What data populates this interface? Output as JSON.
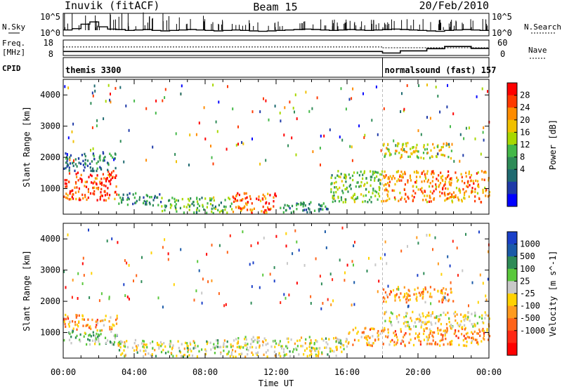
{
  "header": {
    "station": "Inuvik (fitACF)",
    "beam": "Beam 15",
    "date": "20/Feb/2010"
  },
  "left_labels": {
    "nsky": "N.Sky",
    "freq": "Freq.",
    "freq_unit": "[MHz]",
    "cpid": "CPID"
  },
  "right_labels": {
    "nsearch": "N.Search",
    "nave": "Nave"
  },
  "ticks": {
    "noise_top": "10^5",
    "noise_bottom": "10^0",
    "freq_top": "18",
    "freq_bottom": "8",
    "nave_top": "60",
    "nave_bottom": "0"
  },
  "cpid_segments": [
    {
      "label": "themis 3300",
      "start_hour": 0
    },
    {
      "label": "normalsound (fast) 157",
      "start_hour": 18
    }
  ],
  "colorbars": {
    "power": {
      "label": "Power [dB]",
      "ticks": [
        "28",
        "24",
        "20",
        "16",
        "12",
        "8",
        "4"
      ],
      "colors": [
        "#ff0000",
        "#ff3a00",
        "#ff8c00",
        "#f0c000",
        "#a8d800",
        "#44b848",
        "#2e8b57",
        "#1f6a70",
        "#1e3aa8",
        "#0000ff"
      ]
    },
    "velocity": {
      "label": "Velocity [m s^-1]",
      "ticks": [
        "1000",
        "500",
        "100",
        "25",
        "-25",
        "-100",
        "-500",
        "-1000"
      ],
      "colors": [
        "#1a3fc8",
        "#1a5aa8",
        "#2e8b57",
        "#5ac83c",
        "#c8c8c8",
        "#ffd200",
        "#ff9b1e",
        "#ff6419",
        "#ff2814",
        "#ff0000"
      ]
    }
  },
  "chart_data": {
    "type": "heatmap",
    "x_axis_label": "Time UT",
    "x_ticks": [
      "00:00",
      "04:00",
      "08:00",
      "12:00",
      "16:00",
      "20:00",
      "00:00"
    ],
    "xlim_hours": [
      0,
      24
    ],
    "y_axis_label": "Slant Range [km]",
    "y_ticks": [
      1000,
      2000,
      3000,
      4000
    ],
    "ylim_km": [
      180,
      4500
    ],
    "panels": [
      {
        "name": "Power [dB]",
        "clim": [
          0,
          32
        ],
        "regions": [
          {
            "t0": 0.0,
            "t1": 3.0,
            "r0": 650,
            "r1": 1600,
            "value": 27
          },
          {
            "t0": 0.0,
            "t1": 3.0,
            "r0": 1600,
            "r1": 2200,
            "value": 9
          },
          {
            "t0": 3.0,
            "t1": 5.5,
            "r0": 500,
            "r1": 900,
            "value": 10
          },
          {
            "t0": 5.5,
            "t1": 9.5,
            "r0": 250,
            "r1": 750,
            "value": 14
          },
          {
            "t0": 9.5,
            "t1": 12.0,
            "r0": 250,
            "r1": 900,
            "value": 26
          },
          {
            "t0": 12.0,
            "t1": 15.0,
            "r0": 250,
            "r1": 600,
            "value": 10
          },
          {
            "t0": 15.0,
            "t1": 18.0,
            "r0": 600,
            "r1": 1600,
            "value": 15
          },
          {
            "t0": 18.0,
            "t1": 24.0,
            "r0": 600,
            "r1": 1600,
            "value": 24
          },
          {
            "t0": 18.0,
            "t1": 22.0,
            "r0": 2000,
            "r1": 2500,
            "value": 19
          }
        ]
      },
      {
        "name": "Velocity [m s^-1]",
        "clim": [
          -1000,
          1000
        ],
        "regions": [
          {
            "t0": 0.0,
            "t1": 3.0,
            "r0": 650,
            "r1": 1100,
            "value": 300
          },
          {
            "t0": 0.0,
            "t1": 3.0,
            "r0": 1100,
            "r1": 1600,
            "value": -300
          },
          {
            "t0": 3.0,
            "t1": 9.5,
            "r0": 250,
            "r1": 800,
            "value": 80
          },
          {
            "t0": 9.5,
            "t1": 12.0,
            "r0": 250,
            "r1": 900,
            "value": 0
          },
          {
            "t0": 12.0,
            "t1": 16.0,
            "r0": 250,
            "r1": 900,
            "value": 80
          },
          {
            "t0": 16.0,
            "t1": 24.0,
            "r0": 600,
            "r1": 1200,
            "value": -300
          },
          {
            "t0": 18.0,
            "t1": 24.0,
            "r0": 1200,
            "r1": 1700,
            "value": 0
          },
          {
            "t0": 18.0,
            "t1": 22.0,
            "r0": 2000,
            "r1": 2500,
            "value": -300
          }
        ]
      }
    ],
    "noise_sky": [
      1.3,
      1.6,
      2.6,
      3.1,
      2.0,
      1.5,
      1.4,
      1.2,
      1.3,
      1.4,
      1.2,
      1.1,
      1.2,
      1.3,
      1.4,
      1.3,
      1.2,
      1.1,
      1.2,
      1.3,
      1.2,
      1.1,
      1.0,
      1.1,
      1.2,
      1.3,
      1.4,
      1.5,
      1.4,
      1.3,
      1.2,
      1.3,
      1.4,
      1.3,
      1.2,
      1.3,
      1.4,
      1.5,
      1.4,
      1.3,
      1.2,
      1.1,
      1.0,
      1.2,
      1.3,
      1.4,
      1.3,
      1.2
    ],
    "frequency_mhz": [
      {
        "t0": 0.0,
        "t1": 18.0,
        "value": 10.6
      },
      {
        "t0": 18.0,
        "t1": 19.0,
        "value": 9.6
      },
      {
        "t0": 19.0,
        "t1": 20.5,
        "value": 11.0
      },
      {
        "t0": 20.5,
        "t1": 21.5,
        "value": 12.4
      },
      {
        "t0": 21.5,
        "t1": 23.0,
        "value": 13.8
      },
      {
        "t0": 23.0,
        "t1": 24.0,
        "value": 12.6
      }
    ],
    "nave": [
      {
        "t0": 0.0,
        "t1": 18.0,
        "value": 33
      },
      {
        "t0": 18.0,
        "t1": 24.0,
        "value": 30
      }
    ]
  }
}
